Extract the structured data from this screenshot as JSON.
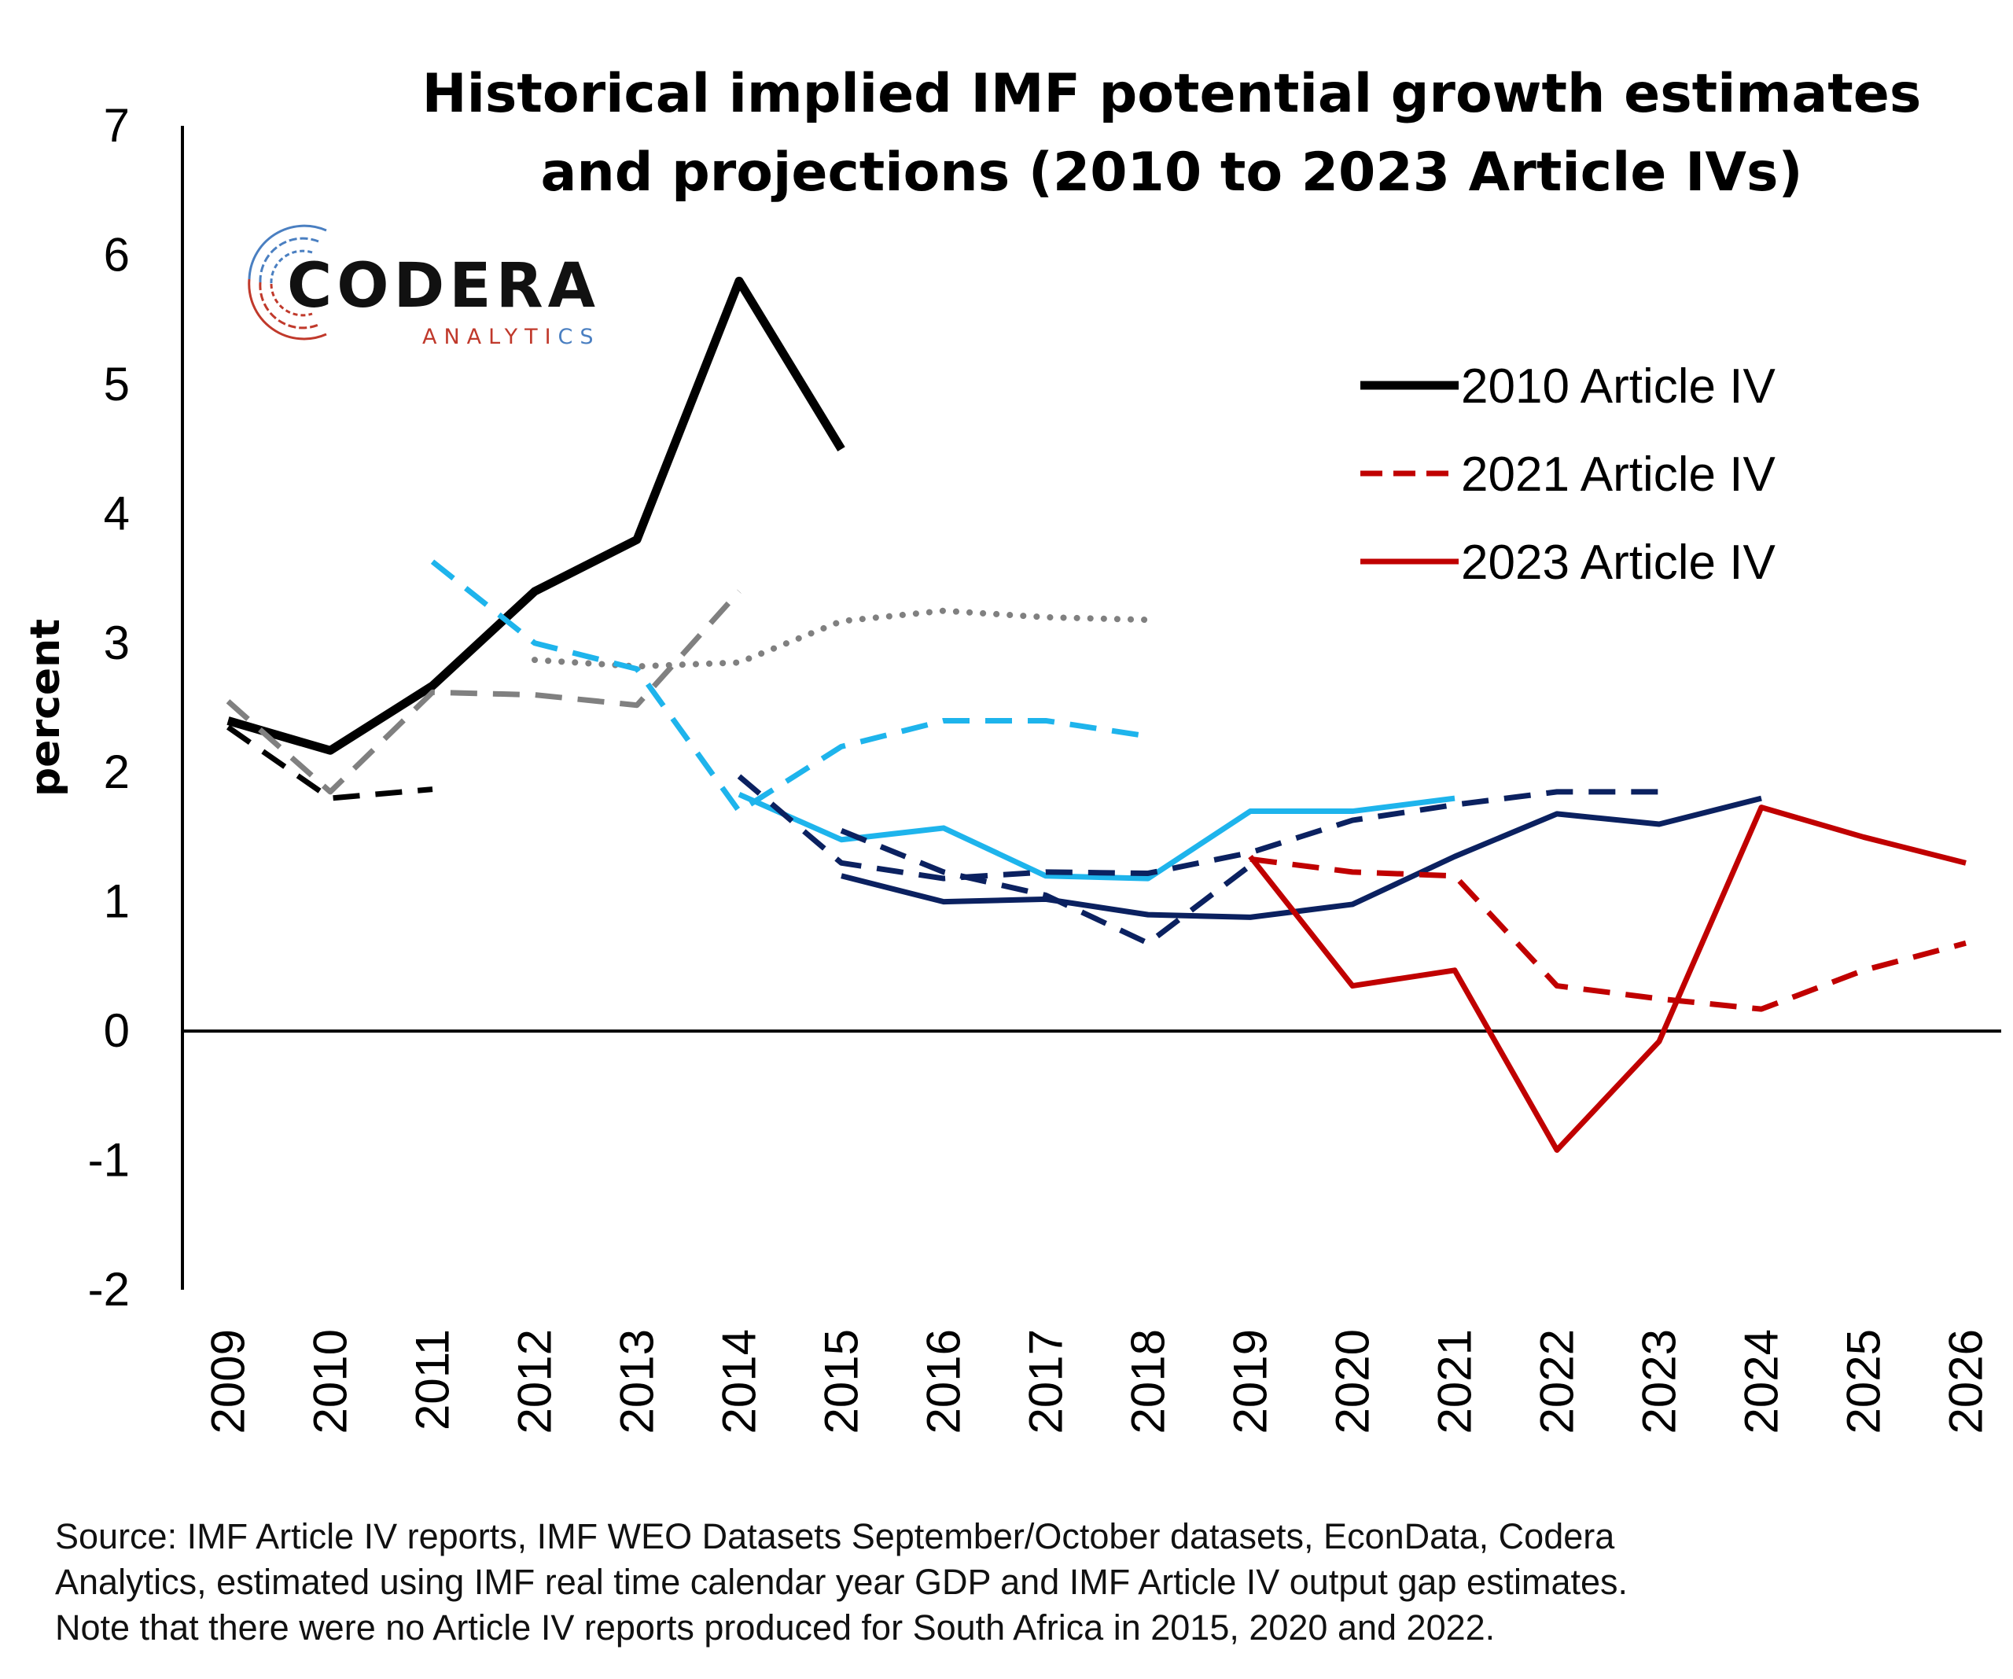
{
  "chart_data": {
    "type": "line",
    "title": [
      "Historical implied IMF potential growth estimates",
      "and projections (2010 to 2023 Article IVs)"
    ],
    "ylabel": "percent",
    "xlabel": "",
    "x": [
      "2009",
      "2010",
      "2011",
      "2012",
      "2013",
      "2014",
      "2015",
      "2016",
      "2017",
      "2018",
      "2019",
      "2020",
      "2021",
      "2022",
      "2023",
      "2024",
      "2025",
      "2026"
    ],
    "ylim": [
      -2,
      7
    ],
    "yticks": [
      "-2",
      "-1",
      "0",
      "1",
      "2",
      "3",
      "4",
      "5",
      "6",
      "7"
    ],
    "grid": false,
    "legend_position": "top-right",
    "series": [
      {
        "name": "2010 Article IV",
        "legend": true,
        "color": "#000000",
        "dash": "solid",
        "width": 11,
        "x": [
          2009,
          2010,
          2011,
          2012,
          2013,
          2014,
          2015
        ],
        "values": [
          2.4,
          2.17,
          2.67,
          3.4,
          3.8,
          5.8,
          4.5
        ]
      },
      {
        "color": "#000000",
        "dash": "dashed",
        "width": 7,
        "x": [
          2009,
          2010,
          2011
        ],
        "values": [
          2.35,
          1.8,
          1.87
        ]
      },
      {
        "color": "#808080",
        "dash": "dashed",
        "width": 7,
        "x": [
          2009,
          2010,
          2011,
          2012,
          2013,
          2014
        ],
        "values": [
          2.55,
          1.85,
          2.62,
          2.6,
          2.52,
          3.4
        ]
      },
      {
        "color": "#808080",
        "dash": "dotted",
        "width": 8,
        "x": [
          2012,
          2013,
          2014,
          2015,
          2016,
          2017,
          2018
        ],
        "values": [
          2.87,
          2.82,
          2.85,
          3.17,
          3.25,
          3.2,
          3.18
        ]
      },
      {
        "color": "#1eb4ec",
        "dash": "dashed",
        "width": 7,
        "x": [
          2011,
          2012,
          2013,
          2014,
          2015,
          2016,
          2017,
          2018
        ],
        "values": [
          3.63,
          3.0,
          2.8,
          1.7,
          2.2,
          2.4,
          2.4,
          2.28
        ]
      },
      {
        "color": "#1eb4ec",
        "dash": "solid",
        "width": 7,
        "x": [
          2014,
          2015,
          2016,
          2017,
          2018,
          2019,
          2020,
          2021
        ],
        "values": [
          1.83,
          1.48,
          1.57,
          1.2,
          1.18,
          1.7,
          1.7,
          1.8
        ]
      },
      {
        "color": "#0b2160",
        "dash": "dashed",
        "width": 7,
        "x": [
          2014,
          2015,
          2016,
          2017,
          2018,
          2019,
          2020,
          2021,
          2022,
          2023
        ],
        "values": [
          1.97,
          1.3,
          1.18,
          1.23,
          1.22,
          1.38,
          1.63,
          1.75,
          1.85,
          1.85
        ]
      },
      {
        "color": "#0b2160",
        "dash": "dashed",
        "width": 7,
        "x": [
          2015,
          2016,
          2017,
          2018,
          2019
        ],
        "values": [
          1.55,
          1.23,
          1.05,
          0.68,
          1.28
        ]
      },
      {
        "color": "#0b2160",
        "dash": "solid",
        "width": 7,
        "x": [
          2015,
          2016,
          2017,
          2018,
          2019,
          2020,
          2021,
          2022,
          2023,
          2024
        ],
        "values": [
          1.2,
          1.0,
          1.02,
          0.9,
          0.88,
          0.98,
          1.35,
          1.68,
          1.6,
          1.8
        ]
      },
      {
        "name": "2021 Article IV",
        "legend": true,
        "color": "#c00000",
        "dash": "dashed",
        "width": 7,
        "x": [
          2019,
          2020,
          2021,
          2022,
          2023,
          2024,
          2025,
          2026
        ],
        "values": [
          1.33,
          1.23,
          1.2,
          0.35,
          0.25,
          0.17,
          0.47,
          0.68
        ]
      },
      {
        "name": "2023 Article IV",
        "legend": true,
        "color": "#c00000",
        "dash": "solid",
        "width": 7,
        "x": [
          2019,
          2020,
          2021,
          2022,
          2023,
          2024,
          2025,
          2026
        ],
        "values": [
          1.35,
          0.35,
          0.47,
          -0.92,
          -0.08,
          1.73,
          1.5,
          1.3
        ]
      }
    ]
  },
  "logo": {
    "word": "CODERA",
    "sub_main": "ANALYTI",
    "sub_tail": "CS"
  },
  "source_note": [
    "Source: IMF Article IV reports, IMF WEO Datasets September/October datasets, EconData, Codera",
    "Analytics, estimated using IMF real time calendar year GDP and IMF Article IV output gap estimates.",
    "Note that there were no Article IV reports produced for South Africa in 2015, 2020 and 2022."
  ],
  "colors": {
    "red": "#c00000",
    "light_blue": "#1eb4ec",
    "navy": "#0b2160",
    "grey": "#808080",
    "black": "#000000"
  }
}
